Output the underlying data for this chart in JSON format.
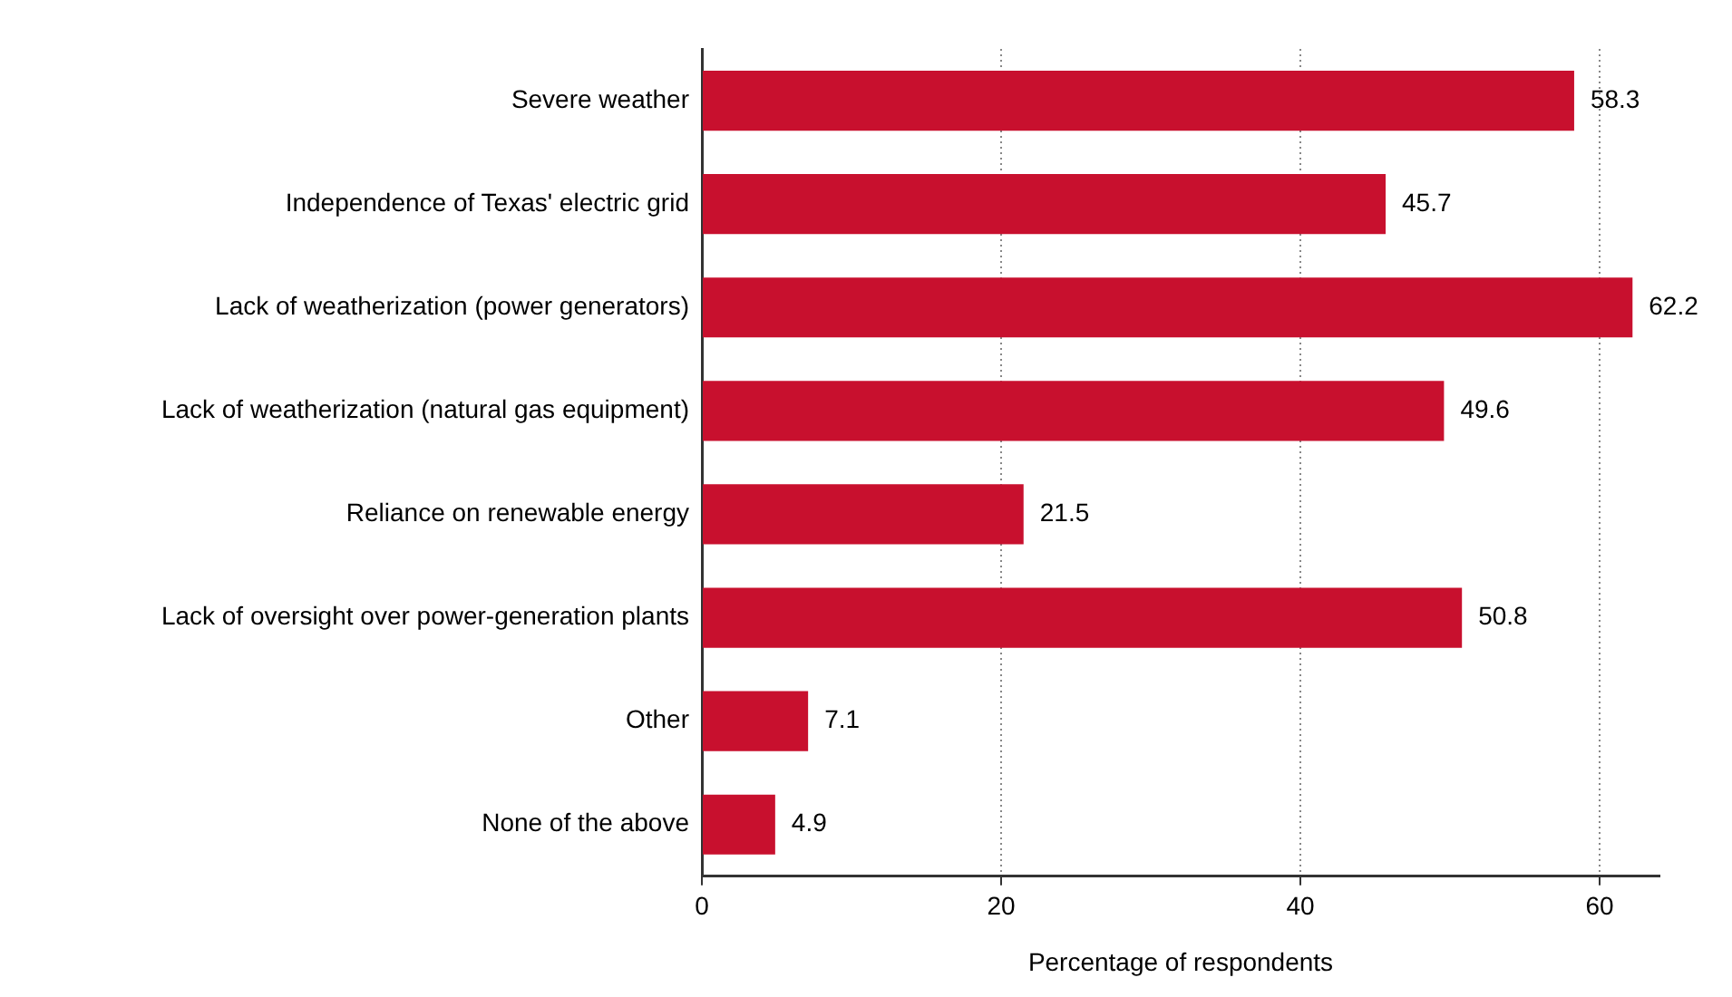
{
  "chart_data": {
    "type": "bar",
    "orientation": "horizontal",
    "categories": [
      "Severe weather",
      "Independence of Texas' electric grid",
      "Lack of weatherization (power generators)",
      "Lack of weatherization (natural gas equipment)",
      "Reliance on renewable energy",
      "Lack of oversight over power-generation plants",
      "Other",
      "None of the above"
    ],
    "values": [
      58.3,
      45.7,
      62.2,
      49.6,
      21.5,
      50.8,
      7.1,
      4.9
    ],
    "color": "#c8102e",
    "xlabel": "Percentage of respondents",
    "xlim": [
      0,
      64
    ],
    "xticks": [
      0,
      20,
      40,
      60
    ],
    "grid": "x",
    "data_labels": true
  }
}
